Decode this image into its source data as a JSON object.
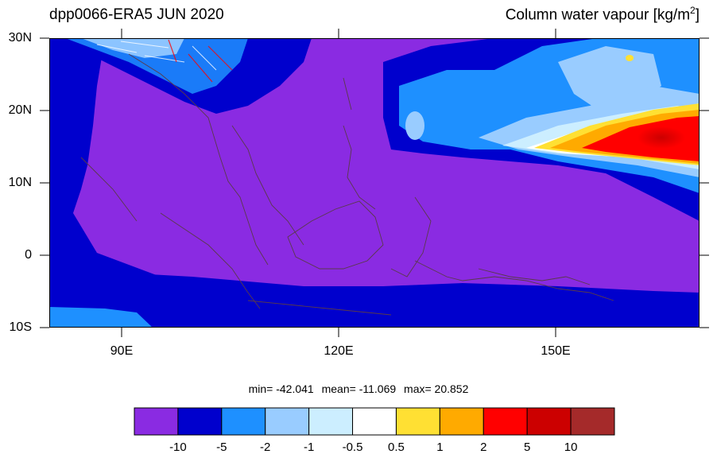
{
  "header": {
    "left_title": "dpp0066-ERA5  JUN 2020",
    "right_title_main": "Column water vapour [kg/m",
    "right_title_sup": "2",
    "right_title_end": "]"
  },
  "axes": {
    "lat_labels": [
      "30N",
      "20N",
      "10N",
      "0",
      "10S"
    ],
    "lon_labels": [
      "90E",
      "120E",
      "150E"
    ],
    "lat_range": [
      -10,
      30
    ],
    "lon_range": [
      80,
      170
    ]
  },
  "stats": {
    "min": "min= -42.041",
    "mean": "mean= -11.069",
    "max": "max=  20.852"
  },
  "colorbar": {
    "labels": [
      "-10",
      "-5",
      "-2",
      "-1",
      "-0.5",
      "0.5",
      "1",
      "2",
      "5",
      "10"
    ],
    "colors": [
      "#8a2be2",
      "#0000cd",
      "#1e90ff",
      "#99ccff",
      "#cceeff",
      "#ffffff",
      "#ffe033",
      "#ffaa00",
      "#ff0000",
      "#cc0000",
      "#a52a2a"
    ]
  },
  "colors": {
    "land_line": "#5a3a4a",
    "background_field": "#8a2be2"
  }
}
